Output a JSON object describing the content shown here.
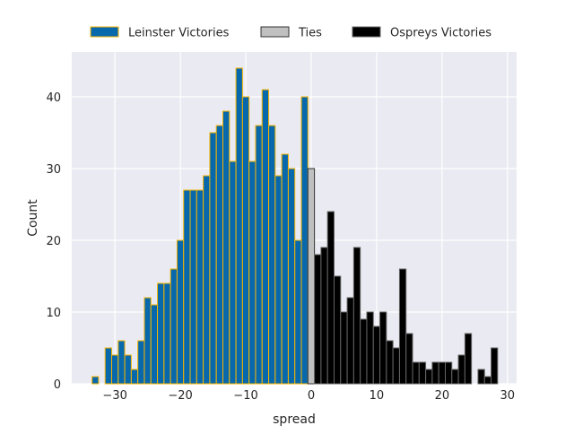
{
  "chart_data": {
    "type": "bar",
    "title": "",
    "xlabel": "spread",
    "ylabel": "Count",
    "xlim": [
      -36.6,
      31.4
    ],
    "ylim": [
      0,
      46.25
    ],
    "xticks": [
      -30,
      -20,
      -10,
      0,
      10,
      20,
      30
    ],
    "xtick_labels": [
      "−30",
      "−20",
      "−10",
      "0",
      "10",
      "20",
      "30"
    ],
    "yticks": [
      0,
      10,
      20,
      30,
      40
    ],
    "yticks_labels": [
      "0",
      "10",
      "20",
      "30",
      "40"
    ],
    "grid": true,
    "legend_placement": "top-center-outside",
    "bin_width": 1,
    "series": [
      {
        "name": "Leinster Victories",
        "color": "#0868ac",
        "edge": "#f5b400",
        "x": [
          -33,
          -32,
          -31,
          -30,
          -29,
          -28,
          -27,
          -26,
          -25,
          -24,
          -23,
          -22,
          -21,
          -20,
          -19,
          -18,
          -17,
          -16,
          -15,
          -14,
          -13,
          -12,
          -11,
          -10,
          -9,
          -8,
          -7,
          -6,
          -5,
          -4,
          -3,
          -2,
          -1
        ],
        "values": [
          1,
          0,
          5,
          4,
          6,
          4,
          2,
          6,
          12,
          11,
          14,
          14,
          16,
          20,
          27,
          27,
          27,
          29,
          35,
          36,
          38,
          31,
          44,
          40,
          31,
          36,
          41,
          36,
          29,
          32,
          30,
          20,
          40
        ]
      },
      {
        "name": "Ties",
        "color": "#c0c0c0",
        "edge": "#333333",
        "x": [
          0
        ],
        "values": [
          30
        ]
      },
      {
        "name": "Ospreys Victories",
        "color": "#000000",
        "edge": "#666666",
        "x": [
          1,
          2,
          3,
          4,
          5,
          6,
          7,
          8,
          9,
          10,
          11,
          12,
          13,
          14,
          15,
          16,
          17,
          18,
          19,
          20,
          21,
          22,
          23,
          24,
          25,
          26,
          27,
          28
        ],
        "values": [
          18,
          19,
          24,
          15,
          10,
          12,
          19,
          9,
          10,
          8,
          10,
          6,
          5,
          16,
          7,
          3,
          3,
          2,
          3,
          3,
          3,
          2,
          4,
          7,
          0,
          2,
          1,
          5
        ]
      }
    ]
  }
}
